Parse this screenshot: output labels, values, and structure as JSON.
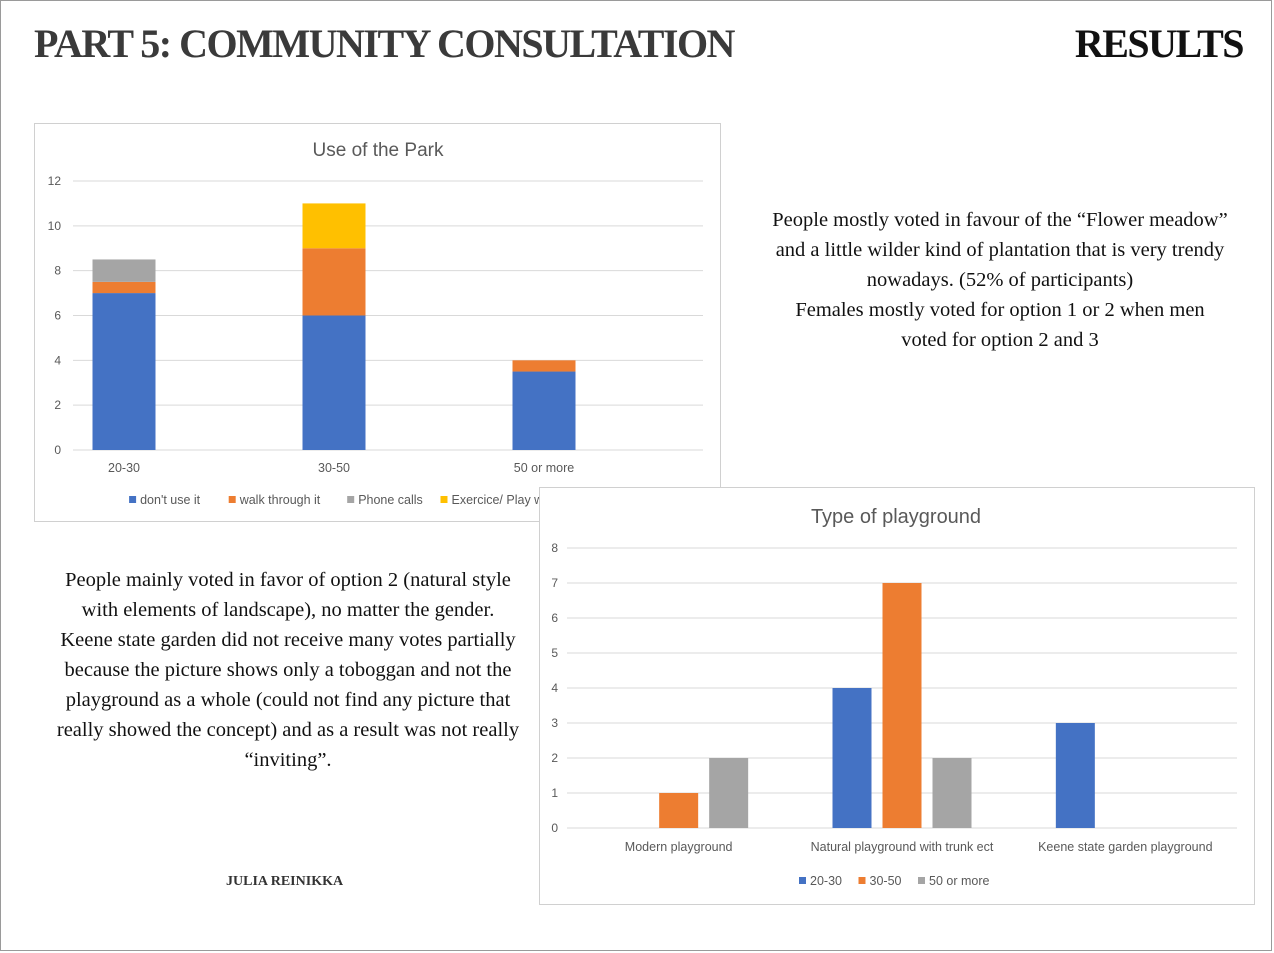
{
  "header": {
    "title_left": "PART 5: COMMUNITY CONSULTATION",
    "title_right": "RESULTS"
  },
  "text_right": [
    "People mostly voted in favour of the “Flower meadow” and a little wilder kind of plantation that is very trendy nowadays. (52% of participants)",
    "Females mostly voted for option 1 or 2 when men voted for option 2 and 3"
  ],
  "text_left": [
    "People mainly voted in favor of option 2 (natural style with elements of landscape), no matter the gender.",
    "Keene state garden did not receive many votes partially because the picture shows only a toboggan and not the playground as a whole (could not find any picture that really showed the concept) and as a result was not really “inviting”."
  ],
  "author": "JULIA REINIKKA",
  "chart_data": [
    {
      "type": "bar",
      "stacked": true,
      "title": "Use of the Park",
      "categories": [
        "20-30",
        "30-50",
        "50 or more"
      ],
      "series": [
        {
          "name": "don't use it",
          "color": "#4472C4",
          "values": [
            7,
            6,
            3.5
          ]
        },
        {
          "name": "walk through it",
          "color": "#ED7D31",
          "values": [
            0.5,
            3,
            0.5
          ]
        },
        {
          "name": "Phone calls",
          "color": "#A5A5A5",
          "values": [
            1,
            0,
            0
          ]
        },
        {
          "name": "Exercice/ Play with children",
          "color": "#FFC000",
          "values": [
            0,
            2,
            0
          ]
        }
      ],
      "ylim": [
        0,
        12
      ],
      "yticks": [
        0,
        2,
        4,
        6,
        8,
        10,
        12
      ],
      "grid": true,
      "legend": "bottom"
    },
    {
      "type": "bar",
      "stacked": false,
      "title": "Type of playground",
      "categories": [
        "Modern playground",
        "Natural playground with trunk ect",
        "Keene state garden playground"
      ],
      "series": [
        {
          "name": "20-30",
          "color": "#4472C4",
          "values": [
            0,
            4,
            3
          ]
        },
        {
          "name": "30-50",
          "color": "#ED7D31",
          "values": [
            1,
            7,
            0
          ]
        },
        {
          "name": "50 or more",
          "color": "#A5A5A5",
          "values": [
            2,
            2,
            0
          ]
        }
      ],
      "ylim": [
        0,
        8
      ],
      "yticks": [
        0,
        1,
        2,
        3,
        4,
        5,
        6,
        7,
        8
      ],
      "grid": true,
      "legend": "bottom"
    }
  ]
}
